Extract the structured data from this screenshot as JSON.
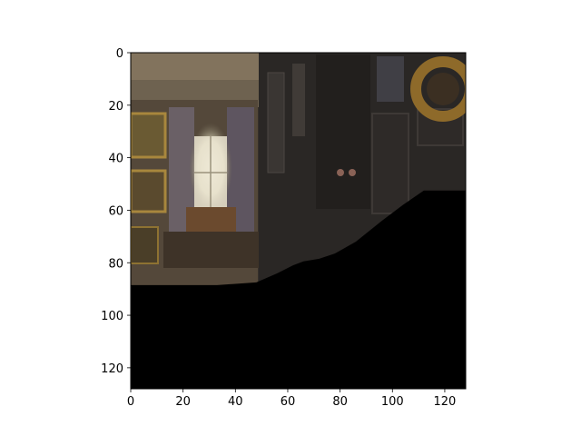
{
  "figure": {
    "background": "#ffffff",
    "image_description_colors": {
      "dark_wall": "#2b2826",
      "window_light": "#e8e2cf",
      "gold_frame": "#9b7a3a",
      "mask": "#000000"
    }
  },
  "axes": {
    "x_ticks": [
      "0",
      "20",
      "40",
      "60",
      "80",
      "100",
      "120"
    ],
    "y_ticks": [
      "0",
      "20",
      "40",
      "60",
      "80",
      "100",
      "120"
    ],
    "x_range": [
      0,
      128
    ],
    "y_range": [
      0,
      128
    ],
    "y_inverted": true
  },
  "image": {
    "size": [
      128,
      128
    ],
    "mask_boundary": [
      [
        0,
        88.5
      ],
      [
        33,
        88.5
      ],
      [
        48,
        87.5
      ],
      [
        56,
        84
      ],
      [
        62,
        81
      ],
      [
        66,
        79.5
      ],
      [
        72,
        78.5
      ],
      [
        78,
        76.5
      ],
      [
        86,
        72
      ],
      [
        96,
        64
      ],
      [
        104,
        58
      ],
      [
        112,
        52.5
      ],
      [
        128,
        52.5
      ]
    ]
  }
}
